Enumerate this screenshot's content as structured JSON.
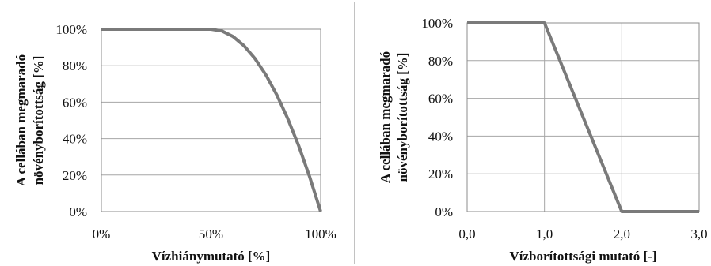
{
  "chart_data": [
    {
      "type": "line",
      "xlabel": "Vízhiánymutató  [%]",
      "ylabel_lines": [
        "A cellában megmaradó",
        "növényborítottság [%]"
      ],
      "xlim": [
        0,
        100
      ],
      "ylim": [
        0,
        100
      ],
      "x_ticks": [
        0,
        50,
        100
      ],
      "x_tick_labels": [
        "0%",
        "50%",
        "100%"
      ],
      "y_ticks": [
        0,
        20,
        40,
        60,
        80,
        100
      ],
      "y_tick_labels": [
        "0%",
        "20%",
        "40%",
        "60%",
        "80%",
        "100%"
      ],
      "grid": true,
      "series": [
        {
          "color": "#7a7a7a",
          "x": [
            0,
            50,
            55,
            60,
            65,
            70,
            75,
            80,
            85,
            90,
            95,
            100
          ],
          "y": [
            100,
            100,
            99,
            96,
            91,
            84,
            75,
            64,
            51,
            36,
            19,
            0
          ]
        }
      ]
    },
    {
      "type": "line",
      "xlabel": "Vízborítottsági mutató  [-]",
      "ylabel_lines": [
        "A cellában megmaradó",
        "növényborítottság [%]"
      ],
      "xlim": [
        0,
        3
      ],
      "ylim": [
        0,
        100
      ],
      "x_ticks": [
        0,
        1,
        2,
        3
      ],
      "x_tick_labels": [
        "0,0",
        "1,0",
        "2,0",
        "3,0"
      ],
      "y_ticks": [
        0,
        20,
        40,
        60,
        80,
        100
      ],
      "y_tick_labels": [
        "0%",
        "20%",
        "40%",
        "60%",
        "80%",
        "100%"
      ],
      "grid": true,
      "series": [
        {
          "color": "#7a7a7a",
          "x": [
            0,
            1,
            2,
            3
          ],
          "y": [
            100,
            100,
            0,
            0
          ]
        }
      ]
    }
  ]
}
